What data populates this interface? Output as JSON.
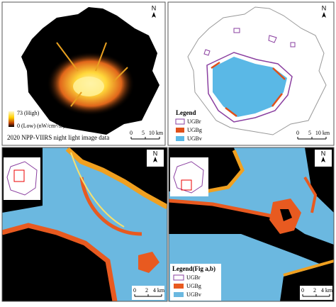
{
  "night_light": {
    "north": "N",
    "legend_high": "73 (High)",
    "legend_low": "0 (Low) (nW/cm²/sr)",
    "caption": "2020 NPP-VIIRS night light image data",
    "scale": [
      "0",
      "5",
      "10 km"
    ]
  },
  "ugb_map": {
    "north": "N",
    "legend_title": "Legend",
    "legend_items": [
      "UGBr",
      "UGBg",
      "UGBv"
    ],
    "scale": [
      "0",
      "5",
      "10 km"
    ]
  },
  "detail_a": {
    "label": "(a)",
    "north": "N",
    "scale": [
      "0",
      "2",
      "4 km"
    ]
  },
  "detail_b": {
    "label": "(b)",
    "north": "N",
    "scale": [
      "0",
      "2",
      "4 km"
    ],
    "legend_title": "Legend(Fig a,b)",
    "legend_items": [
      "UGBr",
      "UGBg",
      "UGBv"
    ]
  }
}
